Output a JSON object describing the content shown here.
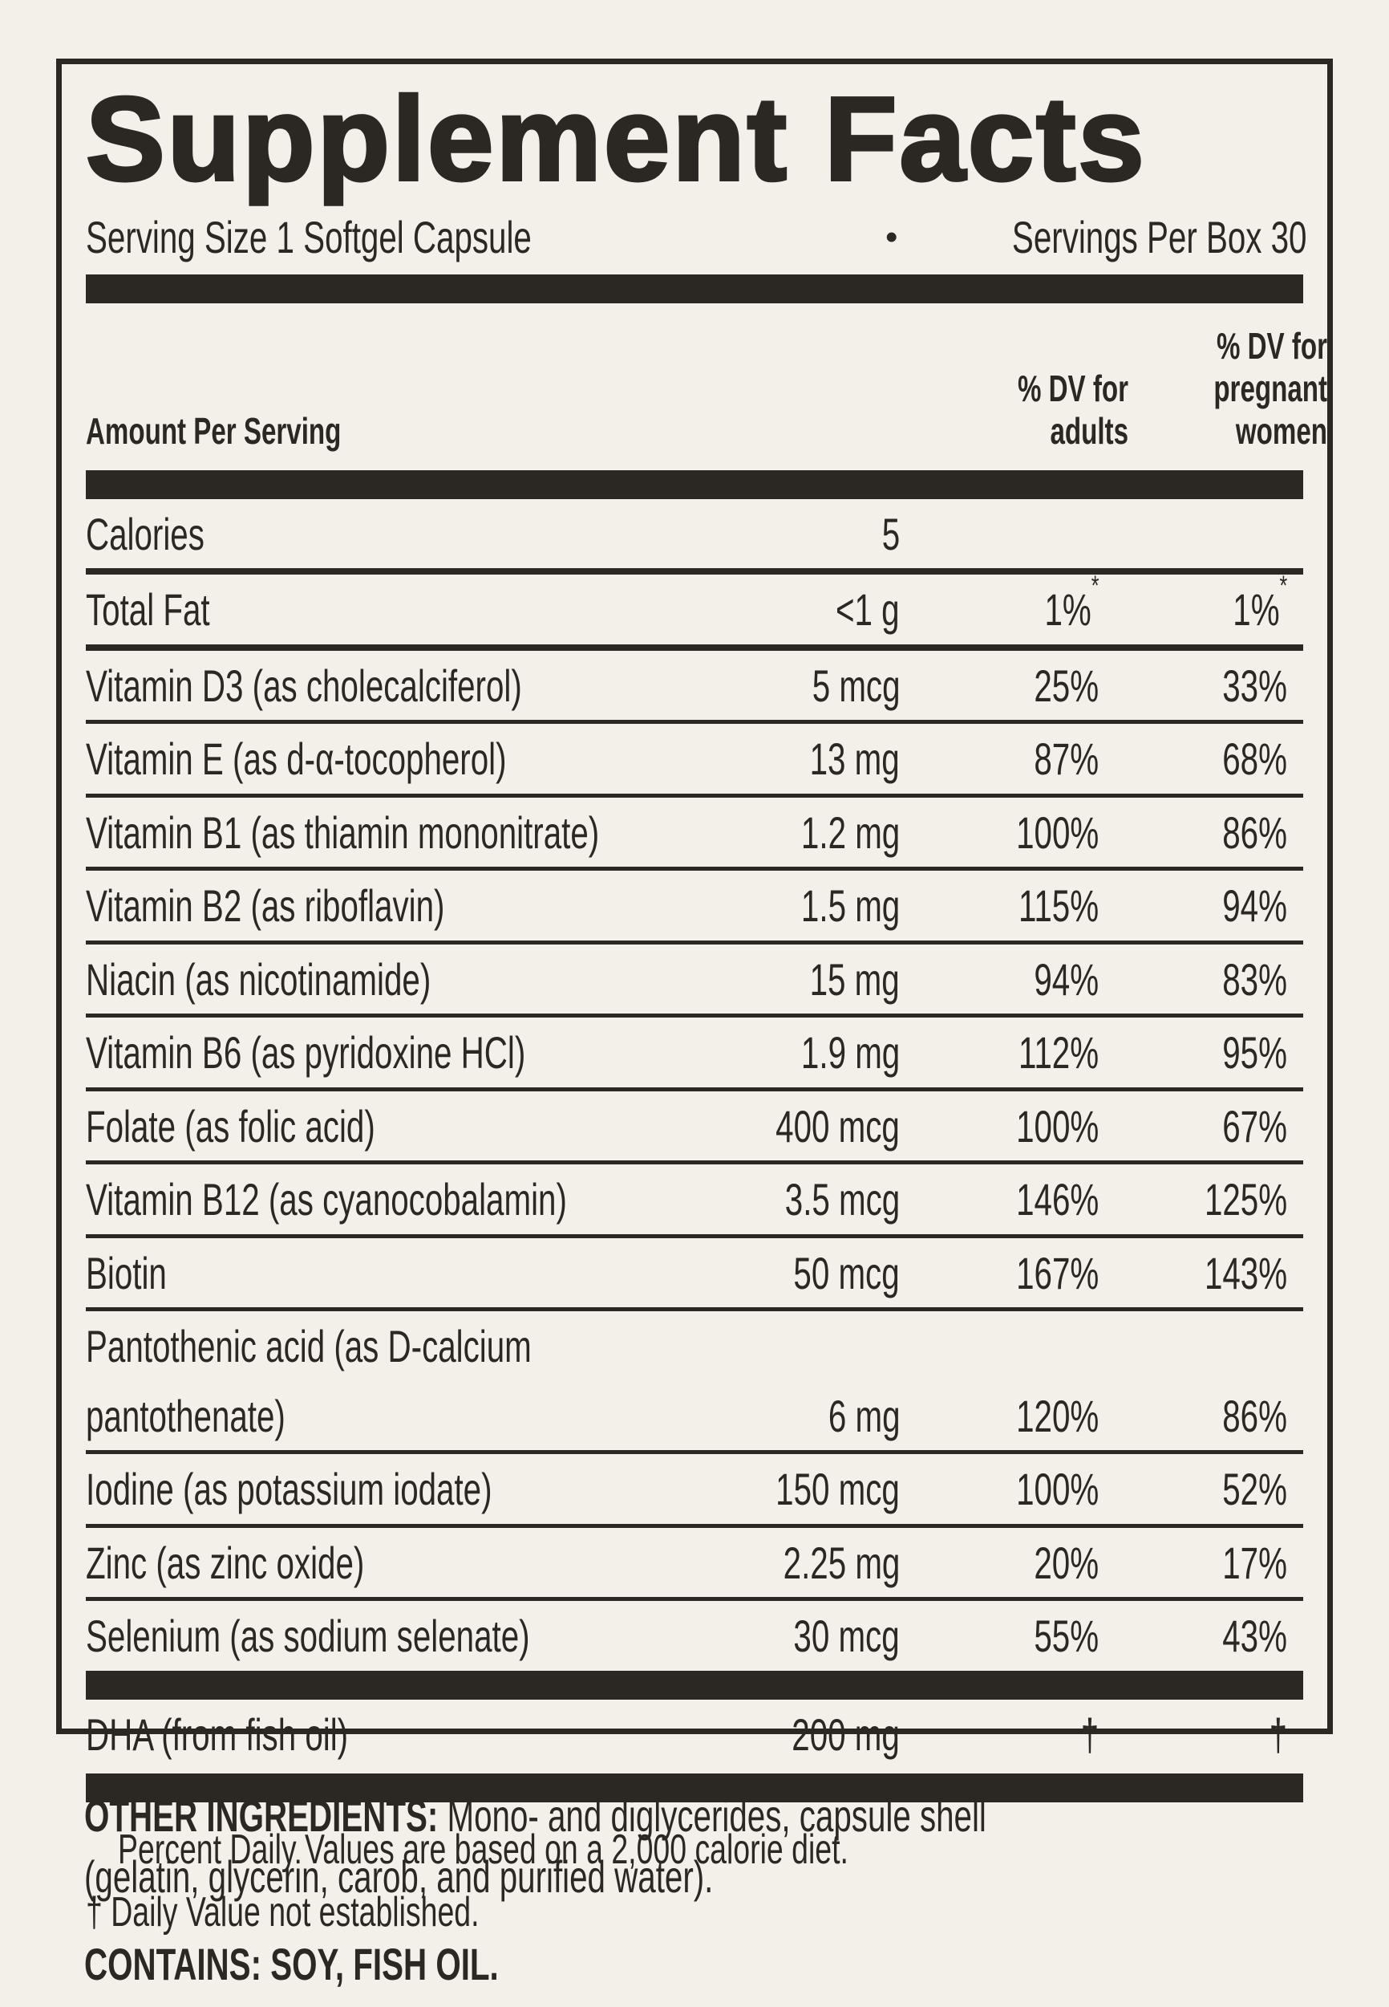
{
  "facts": {
    "title": "Supplement Facts",
    "serving_size": "Serving Size 1 Softgel Capsule",
    "bullet": "•",
    "servings_per_box": "Servings Per Box 30",
    "columns": {
      "amount": "Amount Per Serving",
      "adults": "% DV for adults",
      "pregnant": "% DV for pregnant women"
    },
    "rows": [
      {
        "name": "Calories",
        "amount": "5",
        "dv_adults": "",
        "dv_pregnant": ""
      },
      {
        "name": "Total Fat",
        "amount": "<1 g",
        "dv_adults": "1%",
        "dv_adults_note": "*",
        "dv_pregnant": "1%",
        "dv_pregnant_note": "*"
      },
      {
        "name": "Vitamin D3 (as cholecalciferol)",
        "amount": "5 mcg",
        "dv_adults": "25%",
        "dv_pregnant": "33%"
      },
      {
        "name": "Vitamin E (as d-α-tocopherol)",
        "amount": "13 mg",
        "dv_adults": "87%",
        "dv_pregnant": "68%"
      },
      {
        "name": "Vitamin B1 (as thiamin mononitrate)",
        "amount": "1.2 mg",
        "dv_adults": "100%",
        "dv_pregnant": "86%"
      },
      {
        "name": "Vitamin B2 (as riboflavin)",
        "amount": "1.5 mg",
        "dv_adults": "115%",
        "dv_pregnant": "94%"
      },
      {
        "name": "Niacin (as nicotinamide)",
        "amount": "15 mg",
        "dv_adults": "94%",
        "dv_pregnant": "83%"
      },
      {
        "name": "Vitamin B6 (as pyridoxine HCl)",
        "amount": "1.9 mg",
        "dv_adults": "112%",
        "dv_pregnant": "95%"
      },
      {
        "name": "Folate (as folic acid)",
        "amount": "400 mcg",
        "dv_adults": "100%",
        "dv_pregnant": "67%"
      },
      {
        "name": "Vitamin B12 (as cyanocobalamin)",
        "amount": "3.5 mcg",
        "dv_adults": "146%",
        "dv_pregnant": "125%"
      },
      {
        "name": "Biotin",
        "amount": "50 mcg",
        "dv_adults": "167%",
        "dv_pregnant": "143%"
      },
      {
        "name": "Pantothenic acid (as D-calcium",
        "name_line2": "pantothenate)",
        "amount": "6 mg",
        "dv_adults": "120%",
        "dv_pregnant": "86%"
      },
      {
        "name": "Iodine (as potassium iodate)",
        "amount": "150 mcg",
        "dv_adults": "100%",
        "dv_pregnant": "52%"
      },
      {
        "name": "Zinc (as zinc oxide)",
        "amount": "2.25 mg",
        "dv_adults": "20%",
        "dv_pregnant": "17%"
      },
      {
        "name": "Selenium (as sodium selenate)",
        "amount": "30 mcg",
        "dv_adults": "55%",
        "dv_pregnant": "43%"
      },
      {
        "name": "DHA (from fish oil)",
        "amount": "200 mg",
        "dv_adults": "†",
        "dv_pregnant": "†"
      }
    ],
    "footnotes": {
      "line1": "Percent Daily Values are based on a 2,000 calorie diet.",
      "line2": "† Daily Value not established."
    }
  },
  "other_ingredients": {
    "label": "OTHER INGREDIENTS:",
    "text_line1": "Mono- and diglycerides, capsule shell",
    "text_line2": "(gelatin, glycerin, carob, and purified water)."
  },
  "contains": {
    "label": "CONTAINS:",
    "text": "SOY, FISH OIL."
  },
  "colors": {
    "ink": "#2B2824",
    "background": "#F3EFE9"
  }
}
